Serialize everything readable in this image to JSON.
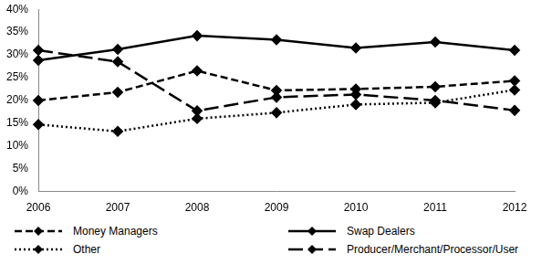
{
  "chart_data": {
    "type": "line",
    "categories": [
      "2006",
      "2007",
      "2008",
      "2009",
      "2010",
      "2011",
      "2012"
    ],
    "series": [
      {
        "name": "Money Managers",
        "color": "#000000",
        "line_style": "dashed",
        "marker": "diamond",
        "values": [
          20.0,
          21.8,
          26.5,
          22.2,
          22.5,
          23.0,
          24.3
        ]
      },
      {
        "name": "Swap Dealers",
        "color": "#000000",
        "line_style": "solid",
        "marker": "diamond",
        "values": [
          28.8,
          31.2,
          34.2,
          33.3,
          31.5,
          32.8,
          31.0
        ]
      },
      {
        "name": "Other",
        "color": "#000000",
        "line_style": "dotted",
        "marker": "diamond",
        "values": [
          14.7,
          13.2,
          16.0,
          17.3,
          19.1,
          19.5,
          22.3
        ]
      },
      {
        "name": "Producer/Merchant/Processor/User",
        "color": "#000000",
        "line_style": "longdash",
        "marker": "diamond",
        "values": [
          31.0,
          28.5,
          17.7,
          20.7,
          21.3,
          20.0,
          17.8
        ]
      }
    ],
    "ylim": [
      0,
      40
    ],
    "yticks": [
      {
        "value": 0,
        "label": "0%"
      },
      {
        "value": 5,
        "label": "5%"
      },
      {
        "value": 10,
        "label": "10%"
      },
      {
        "value": 15,
        "label": "15%"
      },
      {
        "value": 20,
        "label": "20%"
      },
      {
        "value": 25,
        "label": "25%"
      },
      {
        "value": 30,
        "label": "30%"
      },
      {
        "value": 35,
        "label": "35%"
      },
      {
        "value": 40,
        "label": "40%"
      }
    ],
    "grid": false,
    "legend": "bottom"
  }
}
